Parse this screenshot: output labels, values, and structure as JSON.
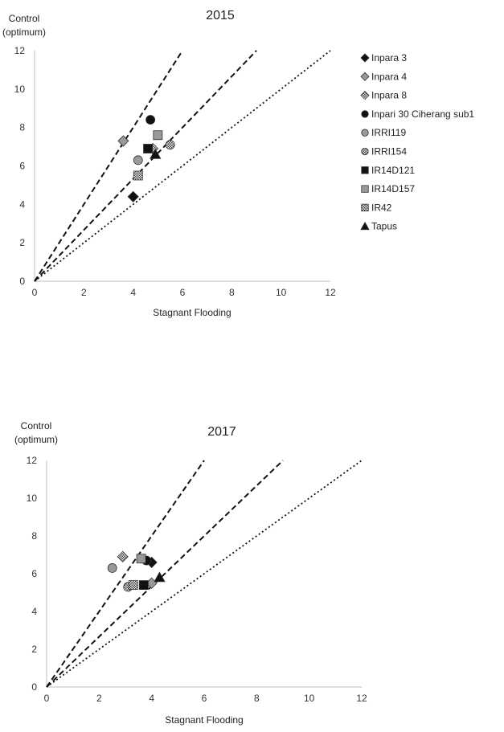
{
  "chart_data": [
    {
      "type": "scatter",
      "title": "2015",
      "xlabel": "Stagnant Flooding",
      "ylabel_line1": "Control",
      "ylabel_line2": "(optimum)",
      "xlim": [
        0,
        12
      ],
      "ylim": [
        0,
        12
      ],
      "xticks": [
        0,
        2,
        4,
        6,
        8,
        10,
        12
      ],
      "yticks": [
        0,
        2,
        4,
        6,
        8,
        10,
        12
      ],
      "reference_lines": [
        {
          "style": "dashed",
          "slope": 2.0
        },
        {
          "style": "dashed",
          "slope": 1.333
        },
        {
          "style": "dotted",
          "slope": 1.0
        }
      ],
      "series": [
        {
          "name": "Inpara 3",
          "marker": "diamond",
          "color": "#111111",
          "x": 4.0,
          "y": 4.4
        },
        {
          "name": "Inpara 4",
          "marker": "diamond",
          "color": "#999999",
          "x": 3.6,
          "y": 7.3
        },
        {
          "name": "Inpara 8",
          "marker": "diamond-hatched",
          "color": "#444444",
          "x": 4.8,
          "y": 6.9
        },
        {
          "name": "Inpari 30 Ciherang sub1",
          "marker": "circle",
          "color": "#111111",
          "x": 4.7,
          "y": 8.4
        },
        {
          "name": "IRRI119",
          "marker": "circle",
          "color": "#999999",
          "x": 4.2,
          "y": 6.3
        },
        {
          "name": "IRRI154",
          "marker": "circle-hatched",
          "color": "#444444",
          "x": 5.5,
          "y": 7.1
        },
        {
          "name": "IR14D121",
          "marker": "square",
          "color": "#111111",
          "x": 4.6,
          "y": 6.9
        },
        {
          "name": "IR14D157",
          "marker": "square",
          "color": "#999999",
          "x": 5.0,
          "y": 7.6
        },
        {
          "name": "IR42",
          "marker": "square-hatched",
          "color": "#444444",
          "x": 4.2,
          "y": 5.5
        },
        {
          "name": "Tapus",
          "marker": "triangle",
          "color": "#111111",
          "x": 4.9,
          "y": 6.6
        }
      ]
    },
    {
      "type": "scatter",
      "title": "2017",
      "xlabel": "Stagnant Flooding",
      "ylabel_line1": "Control",
      "ylabel_line2": "(optimum)",
      "xlim": [
        0,
        12
      ],
      "ylim": [
        0,
        12
      ],
      "xticks": [
        0,
        2,
        4,
        6,
        8,
        10,
        12
      ],
      "yticks": [
        0,
        2,
        4,
        6,
        8,
        10,
        12
      ],
      "reference_lines": [
        {
          "style": "dashed",
          "slope": 2.0
        },
        {
          "style": "dashed",
          "slope": 1.333
        },
        {
          "style": "dotted",
          "slope": 1.0
        }
      ],
      "series": [
        {
          "name": "Inpara 3",
          "marker": "diamond",
          "color": "#111111",
          "x": 4.0,
          "y": 6.6
        },
        {
          "name": "Inpara 4",
          "marker": "diamond",
          "color": "#999999",
          "x": 4.0,
          "y": 5.5
        },
        {
          "name": "Inpara 8",
          "marker": "diamond-hatched",
          "color": "#444444",
          "x": 2.9,
          "y": 6.9
        },
        {
          "name": "Inpari 30 Ciherang sub1",
          "marker": "circle",
          "color": "#111111",
          "x": 3.8,
          "y": 6.7
        },
        {
          "name": "IRRI119",
          "marker": "circle",
          "color": "#999999",
          "x": 2.5,
          "y": 6.3
        },
        {
          "name": "IRRI154",
          "marker": "circle-hatched",
          "color": "#444444",
          "x": 3.1,
          "y": 5.3
        },
        {
          "name": "IR14D121",
          "marker": "square",
          "color": "#111111",
          "x": 3.7,
          "y": 5.4
        },
        {
          "name": "IR14D157",
          "marker": "square",
          "color": "#999999",
          "x": 3.6,
          "y": 6.8
        },
        {
          "name": "IR42",
          "marker": "square-hatched",
          "color": "#444444",
          "x": 3.3,
          "y": 5.4
        },
        {
          "name": "Tapus",
          "marker": "triangle",
          "color": "#111111",
          "x": 4.3,
          "y": 5.8
        }
      ]
    }
  ],
  "legend": {
    "placement": "right of top chart",
    "items": [
      {
        "label": "Inpara 3",
        "marker": "diamond",
        "color": "#111111"
      },
      {
        "label": "Inpara 4",
        "marker": "diamond",
        "color": "#999999"
      },
      {
        "label": "Inpara 8",
        "marker": "diamond-hatched",
        "color": "#444444"
      },
      {
        "label": "Inpari 30 Ciherang sub1",
        "marker": "circle",
        "color": "#111111"
      },
      {
        "label": "IRRI119",
        "marker": "circle",
        "color": "#999999"
      },
      {
        "label": "IRRI154",
        "marker": "circle-hatched",
        "color": "#444444"
      },
      {
        "label": "IR14D121",
        "marker": "square",
        "color": "#111111"
      },
      {
        "label": "IR14D157",
        "marker": "square",
        "color": "#999999"
      },
      {
        "label": "IR42",
        "marker": "square-hatched",
        "color": "#444444"
      },
      {
        "label": "Tapus",
        "marker": "triangle",
        "color": "#111111"
      }
    ]
  }
}
